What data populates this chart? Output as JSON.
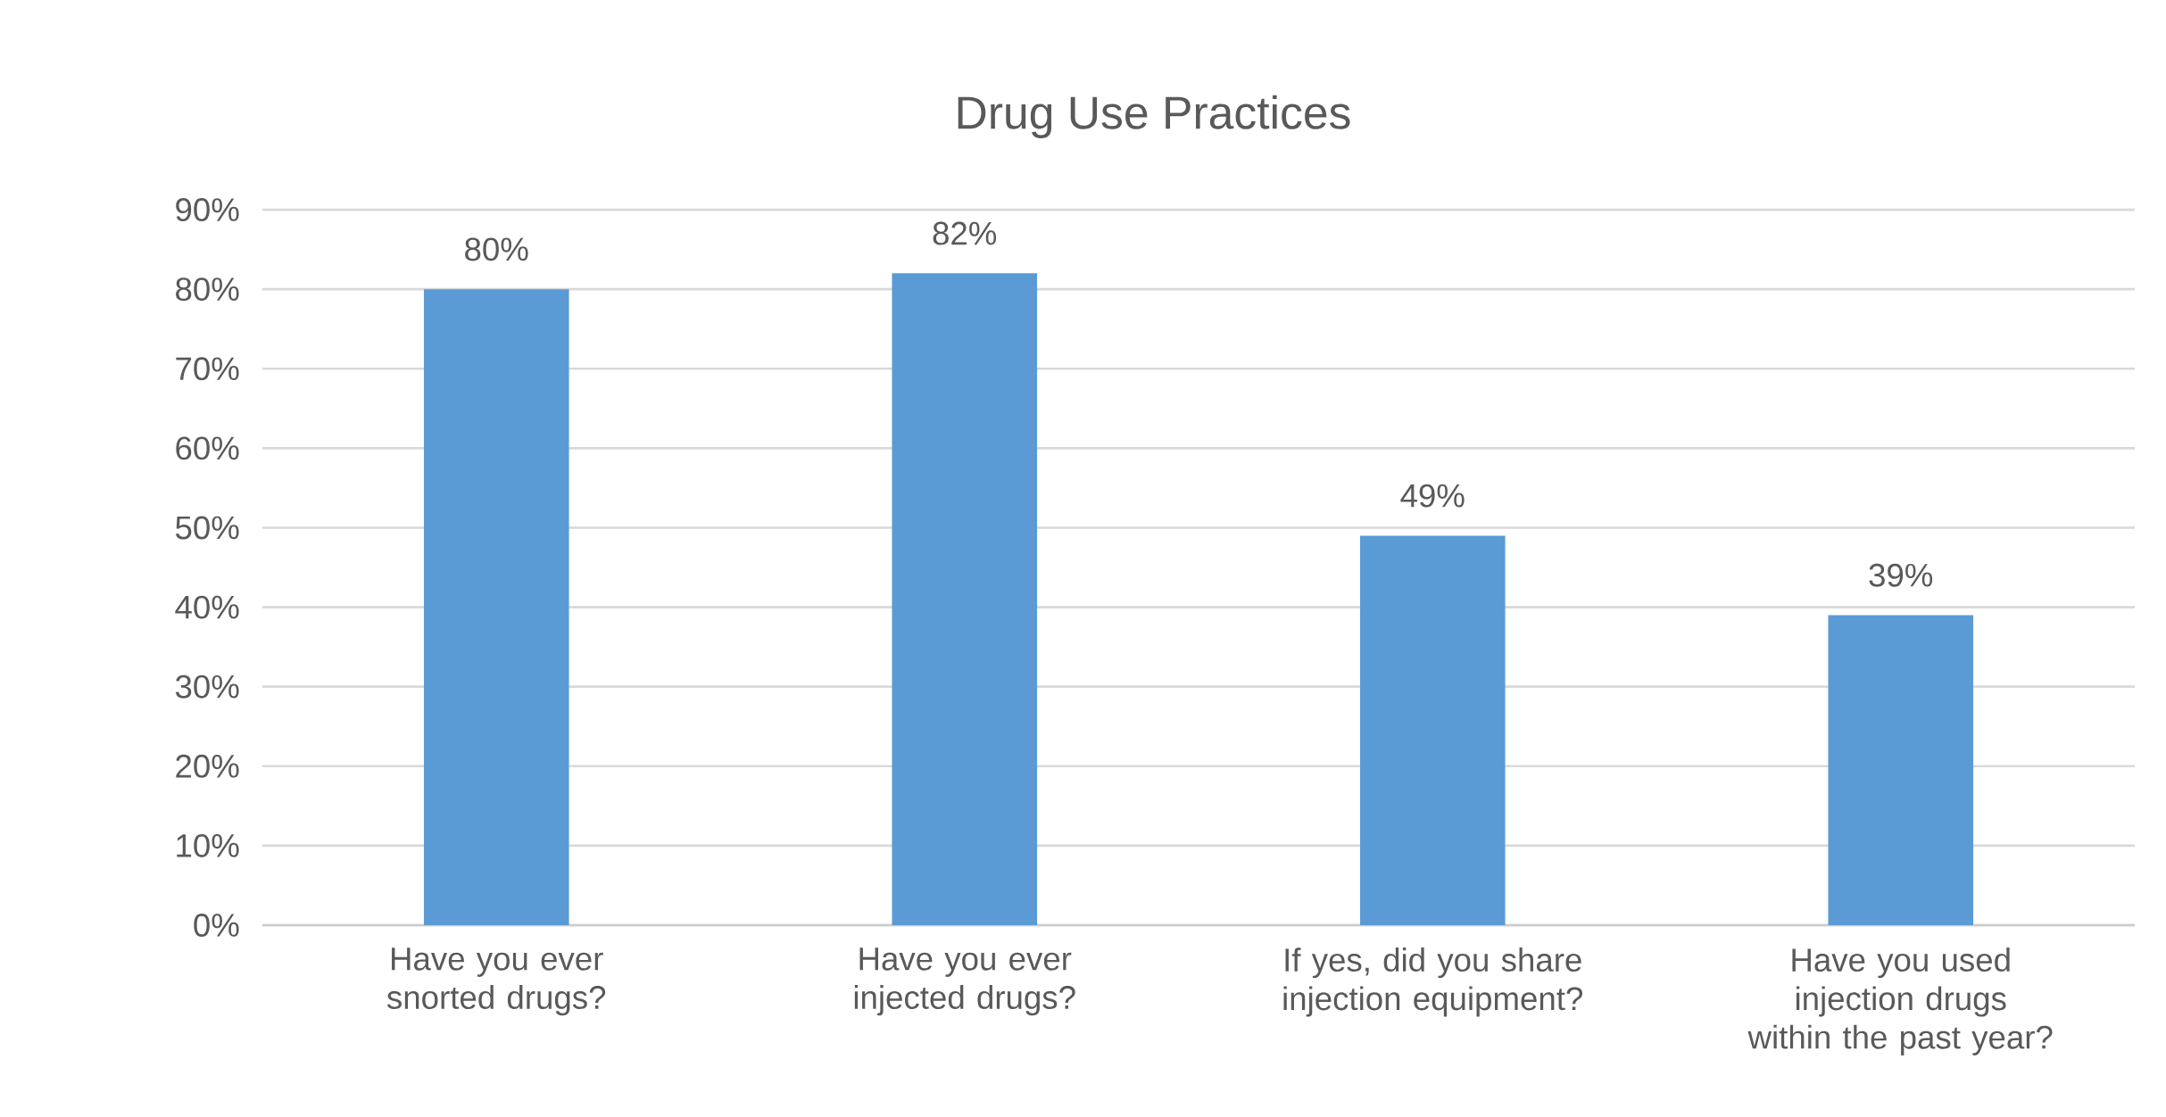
{
  "chart_data": {
    "type": "bar",
    "title": "Drug Use Practices",
    "categories": [
      "Have you ever snorted drugs?",
      "Have you ever injected drugs?",
      "If yes, did you share injection equipment?",
      "Have you used injection drugs within the past year?"
    ],
    "values": [
      80,
      82,
      49,
      39
    ],
    "value_labels": [
      "80%",
      "82%",
      "49%",
      "39%"
    ],
    "color": "#5b9bd5",
    "ylim": [
      0,
      90
    ],
    "yticks": [
      {
        "value": 0,
        "label": "0%"
      },
      {
        "value": 10,
        "label": "10%"
      },
      {
        "value": 20,
        "label": "20%"
      },
      {
        "value": 30,
        "label": "30%"
      },
      {
        "value": 40,
        "label": "40%"
      },
      {
        "value": 50,
        "label": "50%"
      },
      {
        "value": 60,
        "label": "60%"
      },
      {
        "value": 70,
        "label": "70%"
      },
      {
        "value": 80,
        "label": "80%"
      },
      {
        "value": 90,
        "label": "90%"
      }
    ],
    "grid": "y"
  }
}
